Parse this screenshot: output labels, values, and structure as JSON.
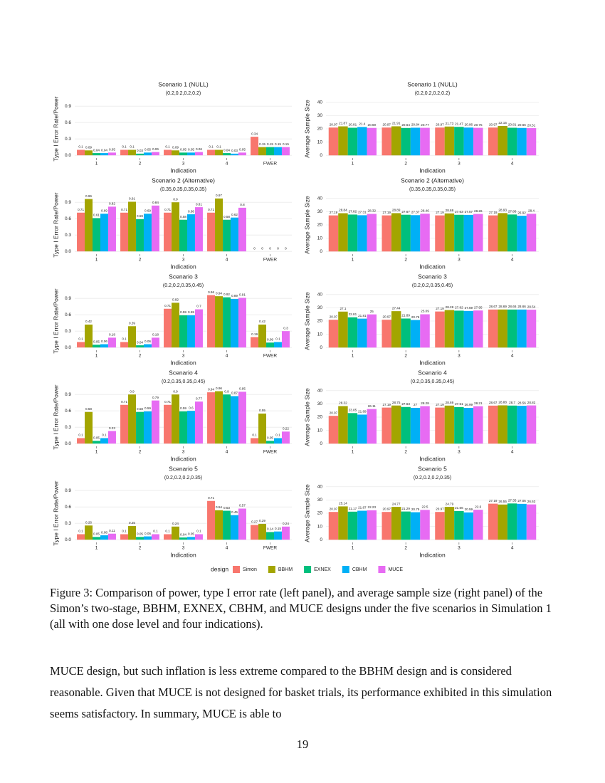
{
  "chart_data": [
    {
      "type": "bar",
      "title": "Scenario 1 (NULL)",
      "subtitle": "(0.2,0.2,0.2,0.2)",
      "x_label": "Indication",
      "y_label": "Type I Error Rate/Power",
      "categories": [
        "1",
        "2",
        "3",
        "4",
        "FWER"
      ],
      "ylim": [
        -0.05,
        1.02
      ],
      "yticks": [
        {
          "value": 0,
          "label": "0.0"
        },
        0.3,
        0.6,
        0.9
      ],
      "grid": true,
      "series": [
        {
          "name": "Simon",
          "color": "#F8766D",
          "values": [
            0.1,
            0.1,
            0.1,
            0.1,
            0.34
          ]
        },
        {
          "name": "BBHM",
          "color": "#A3A500",
          "values": [
            0.09,
            0.1,
            0.09,
            0.1,
            0.15
          ]
        },
        {
          "name": "EXNEX",
          "color": "#00BF7D",
          "values": [
            0.04,
            0.03,
            0.05,
            0.04,
            0.15
          ]
        },
        {
          "name": "CBHM",
          "color": "#00B0F6",
          "values": [
            0.04,
            0.05,
            0.05,
            0.03,
            0.15
          ]
        },
        {
          "name": "MUCE",
          "color": "#E76BF3",
          "values": [
            0.05,
            0.06,
            0.06,
            0.05,
            0.15
          ]
        }
      ]
    },
    {
      "type": "bar",
      "title": "Scenario 1 (NULL)",
      "subtitle": "(0.2,0.2,0.2,0.2)",
      "x_label": "Indication",
      "y_label": "Average Sample Size",
      "categories": [
        "1",
        "2",
        "3",
        "4"
      ],
      "ylim": [
        -2,
        42
      ],
      "yticks": [
        0,
        10,
        20,
        30,
        40
      ],
      "grid": true,
      "series": [
        {
          "name": "Simon",
          "color": "#F8766D",
          "values": [
            20.97,
            20.97,
            20.97,
            20.97
          ]
        },
        {
          "name": "BBHM",
          "color": "#A3A500",
          "values": [
            21.87,
            21.91,
            21.73,
            22.15
          ]
        },
        {
          "name": "EXNEX",
          "color": "#00BF7D",
          "values": [
            20.81,
            20.64,
            21.47,
            20.81
          ]
        },
        {
          "name": "CBHM",
          "color": "#00B0F6",
          "values": [
            21.4,
            20.84,
            20.96,
            20.66
          ]
        },
        {
          "name": "MUCE",
          "color": "#E76BF3",
          "values": [
            20.69,
            20.77,
            20.75,
            20.51
          ]
        }
      ]
    },
    {
      "type": "bar",
      "title": "Scenario 2 (Alternative)",
      "subtitle": "(0.35,0.35,0.35,0.35)",
      "x_label": "Indication",
      "y_label": "Type I Error Rate/Power",
      "categories": [
        "1",
        "2",
        "3",
        "4",
        "FWER"
      ],
      "ylim": [
        -0.05,
        1.02
      ],
      "yticks": [
        {
          "value": 0,
          "label": "0.0"
        },
        0.3,
        0.6,
        0.9
      ],
      "grid": true,
      "series": [
        {
          "name": "Simon",
          "color": "#F8766D",
          "values": [
            0.71,
            0.71,
            0.71,
            0.71,
            0
          ]
        },
        {
          "name": "BBHM",
          "color": "#A3A500",
          "values": [
            0.96,
            0.91,
            0.9,
            0.97,
            0
          ]
        },
        {
          "name": "EXNEX",
          "color": "#00BF7D",
          "values": [
            0.61,
            0.59,
            0.58,
            0.58,
            0
          ]
        },
        {
          "name": "CBHM",
          "color": "#00B0F6",
          "values": [
            0.69,
            0.69,
            0.68,
            0.62,
            0
          ]
        },
        {
          "name": "MUCE",
          "color": "#E76BF3",
          "values": [
            0.82,
            0.84,
            0.81,
            0.8,
            0
          ]
        }
      ]
    },
    {
      "type": "bar",
      "title": "Scenario 2 (Alternative)",
      "subtitle": "(0.35,0.35,0.35,0.35)",
      "x_label": "Indication",
      "y_label": "Average Sample Size",
      "categories": [
        "1",
        "2",
        "3",
        "4"
      ],
      "ylim": [
        -2,
        42
      ],
      "yticks": [
        0,
        10,
        20,
        30,
        40
      ],
      "grid": true,
      "series": [
        {
          "name": "Simon",
          "color": "#F8766D",
          "values": [
            27.19,
            27.19,
            27.19,
            27.19
          ]
        },
        {
          "name": "BBHM",
          "color": "#A3A500",
          "values": [
            28.84,
            28.89,
            28.69,
            28.93
          ]
        },
        {
          "name": "EXNEX",
          "color": "#00BF7D",
          "values": [
            27.82,
            27.67,
            27.63,
            27.86
          ]
        },
        {
          "name": "CBHM",
          "color": "#00B0F6",
          "values": [
            27.31,
            27.37,
            27.57,
            26.92
          ]
        },
        {
          "name": "MUCE",
          "color": "#E76BF3",
          "values": [
            28.32,
            28.46,
            28.26,
            28.4
          ]
        }
      ]
    },
    {
      "type": "bar",
      "title": "Scenario 3",
      "subtitle": "(0.2,0.2,0.35,0.45)",
      "x_label": "Indication",
      "y_label": "Type I Error Rate/Power",
      "categories": [
        "1",
        "2",
        "3",
        "4",
        "FWER"
      ],
      "ylim": [
        -0.05,
        1.02
      ],
      "yticks": [
        {
          "value": 0,
          "label": "0.0"
        },
        0.3,
        0.6,
        0.9
      ],
      "grid": true,
      "series": [
        {
          "name": "Simon",
          "color": "#F8766D",
          "values": [
            0.1,
            0.1,
            0.71,
            0.96,
            0.19
          ]
        },
        {
          "name": "BBHM",
          "color": "#A3A500",
          "values": [
            0.42,
            0.39,
            0.82,
            0.94,
            0.42
          ]
        },
        {
          "name": "EXNEX",
          "color": "#00BF7D",
          "values": [
            0.05,
            0.04,
            0.59,
            0.92,
            0.09
          ]
        },
        {
          "name": "CBHM",
          "color": "#00B0F6",
          "values": [
            0.06,
            0.06,
            0.59,
            0.89,
            0.1
          ]
        },
        {
          "name": "MUCE",
          "color": "#E76BF3",
          "values": [
            0.18,
            0.18,
            0.7,
            0.91,
            0.3
          ]
        }
      ]
    },
    {
      "type": "bar",
      "title": "Scenario 3",
      "subtitle": "(0.2,0.2,0.35,0.45)",
      "x_label": "Indication",
      "y_label": "Average Sample Size",
      "categories": [
        "1",
        "2",
        "3",
        "4"
      ],
      "ylim": [
        -2,
        42
      ],
      "yticks": [
        0,
        10,
        20,
        30,
        40
      ],
      "grid": true,
      "series": [
        {
          "name": "Simon",
          "color": "#F8766D",
          "values": [
            20.97,
            20.97,
            27.19,
            28.67
          ]
        },
        {
          "name": "BBHM",
          "color": "#A3A500",
          "values": [
            27.1,
            27.44,
            28.28,
            28.69
          ]
        },
        {
          "name": "EXNEX",
          "color": "#00BF7D",
          "values": [
            22.81,
            21.89,
            27.82,
            28.66
          ]
        },
        {
          "name": "CBHM",
          "color": "#00B0F6",
          "values": [
            21.81,
            20.76,
            27.59,
            28.66
          ]
        },
        {
          "name": "MUCE",
          "color": "#E76BF3",
          "values": [
            25,
            25.09,
            27.95,
            28.54
          ]
        }
      ]
    },
    {
      "type": "bar",
      "title": "Scenario 4",
      "subtitle": "(0.2,0.35,0.35,0.45)",
      "x_label": "Indication",
      "y_label": "Type I Error Rate/Power",
      "categories": [
        "1",
        "2",
        "3",
        "4",
        "FWER"
      ],
      "ylim": [
        -0.05,
        1.02
      ],
      "yticks": [
        {
          "value": 0,
          "label": "0.0"
        },
        0.3,
        0.6,
        0.9
      ],
      "grid": true,
      "series": [
        {
          "name": "Simon",
          "color": "#F8766D",
          "values": [
            0.1,
            0.71,
            0.71,
            0.94,
            0.1
          ]
        },
        {
          "name": "BBHM",
          "color": "#A3A500",
          "values": [
            0.58,
            0.9,
            0.9,
            0.96,
            0.55
          ]
        },
        {
          "name": "EXNEX",
          "color": "#00BF7D",
          "values": [
            0.05,
            0.58,
            0.59,
            0.9,
            0.05
          ]
        },
        {
          "name": "CBHM",
          "color": "#00B0F6",
          "values": [
            0.1,
            0.59,
            0.6,
            0.87,
            0.1
          ]
        },
        {
          "name": "MUCE",
          "color": "#E76BF3",
          "values": [
            0.23,
            0.79,
            0.77,
            0.95,
            0.22
          ]
        }
      ]
    },
    {
      "type": "bar",
      "title": "Scenario 4",
      "subtitle": "(0.2,0.35,0.35,0.45)",
      "x_label": "Indication",
      "y_label": "Average Sample Size",
      "categories": [
        "1",
        "2",
        "3",
        "4"
      ],
      "ylim": [
        -2,
        42
      ],
      "yticks": [
        0,
        10,
        20,
        30,
        40
      ],
      "grid": true,
      "series": [
        {
          "name": "Simon",
          "color": "#F8766D",
          "values": [
            20.97,
            27.19,
            27.19,
            28.67
          ]
        },
        {
          "name": "BBHM",
          "color": "#A3A500",
          "values": [
            28.32,
            28.75,
            28.69,
            28.88
          ]
        },
        {
          "name": "EXNEX",
          "color": "#00BF7D",
          "values": [
            23.05,
            27.63,
            27.51,
            28.7
          ]
        },
        {
          "name": "CBHM",
          "color": "#00B0F6",
          "values": [
            21.89,
            27,
            26.99,
            28.56
          ]
        },
        {
          "name": "MUCE",
          "color": "#E76BF3",
          "values": [
            26.11,
            28.28,
            28.21,
            28.82
          ]
        }
      ]
    },
    {
      "type": "bar",
      "title": "Scenario 5",
      "subtitle": "(0.2,0.2,0.2,0.35)",
      "x_label": "Indication",
      "y_label": "Type I Error Rate/Power",
      "categories": [
        "1",
        "2",
        "3",
        "4",
        "FWER"
      ],
      "ylim": [
        -0.05,
        1.02
      ],
      "yticks": [
        {
          "value": 0,
          "label": "0.0"
        },
        0.3,
        0.6,
        0.9
      ],
      "grid": true,
      "series": [
        {
          "name": "Simon",
          "color": "#F8766D",
          "values": [
            0.1,
            0.1,
            0.1,
            0.71,
            0.27
          ]
        },
        {
          "name": "BBHM",
          "color": "#A3A500",
          "values": [
            0.26,
            0.25,
            0.24,
            0.54,
            0.29
          ]
        },
        {
          "name": "EXNEX",
          "color": "#00BF7D",
          "values": [
            0.05,
            0.05,
            0.04,
            0.53,
            0.14
          ]
        },
        {
          "name": "CBHM",
          "color": "#00B0F6",
          "values": [
            0.08,
            0.06,
            0.05,
            0.45,
            0.15
          ]
        },
        {
          "name": "MUCE",
          "color": "#E76BF3",
          "values": [
            0.11,
            0.1,
            0.1,
            0.57,
            0.24
          ]
        }
      ]
    },
    {
      "type": "bar",
      "title": "Scenario 5",
      "subtitle": "(0.2,0.2,0.2,0.35)",
      "x_label": "Indication",
      "y_label": "Average Sample Size",
      "categories": [
        "1",
        "2",
        "3",
        "4"
      ],
      "ylim": [
        -2,
        42
      ],
      "yticks": [
        0,
        10,
        20,
        30,
        40
      ],
      "grid": true,
      "series": [
        {
          "name": "Simon",
          "color": "#F8766D",
          "values": [
            20.97,
            20.97,
            20.97,
            27.19
          ]
        },
        {
          "name": "BBHM",
          "color": "#A3A500",
          "values": [
            25.14,
            24.77,
            24.79,
            26.55
          ]
        },
        {
          "name": "EXNEX",
          "color": "#00BF7D",
          "values": [
            21.17,
            21.29,
            21.66,
            27.35
          ]
        },
        {
          "name": "CBHM",
          "color": "#00B0F6",
          "values": [
            21.87,
            20.75,
            20.59,
            27.05
          ]
        },
        {
          "name": "MUCE",
          "color": "#E76BF3",
          "values": [
            22.23,
            22.5,
            22.6,
            26.63
          ]
        }
      ]
    }
  ],
  "legend": {
    "title": "design"
  },
  "document": {
    "caption": "Figure 3: Comparison of power, type I error rate (left panel), and average sample size (right panel) of the Simon’s two-stage, BBHM, EXNEX, CBHM, and MUCE designs under the five scenarios in Simulation 1 (all with one dose level and four indications).",
    "paragraph": "MUCE design, but such inflation is less extreme compared to the BBHM design and is considered reasonable. Given that MUCE is not designed for basket trials, its performance exhibited in this simulation seems satisfactory. In summary, MUCE is able to",
    "page_number": "19"
  }
}
